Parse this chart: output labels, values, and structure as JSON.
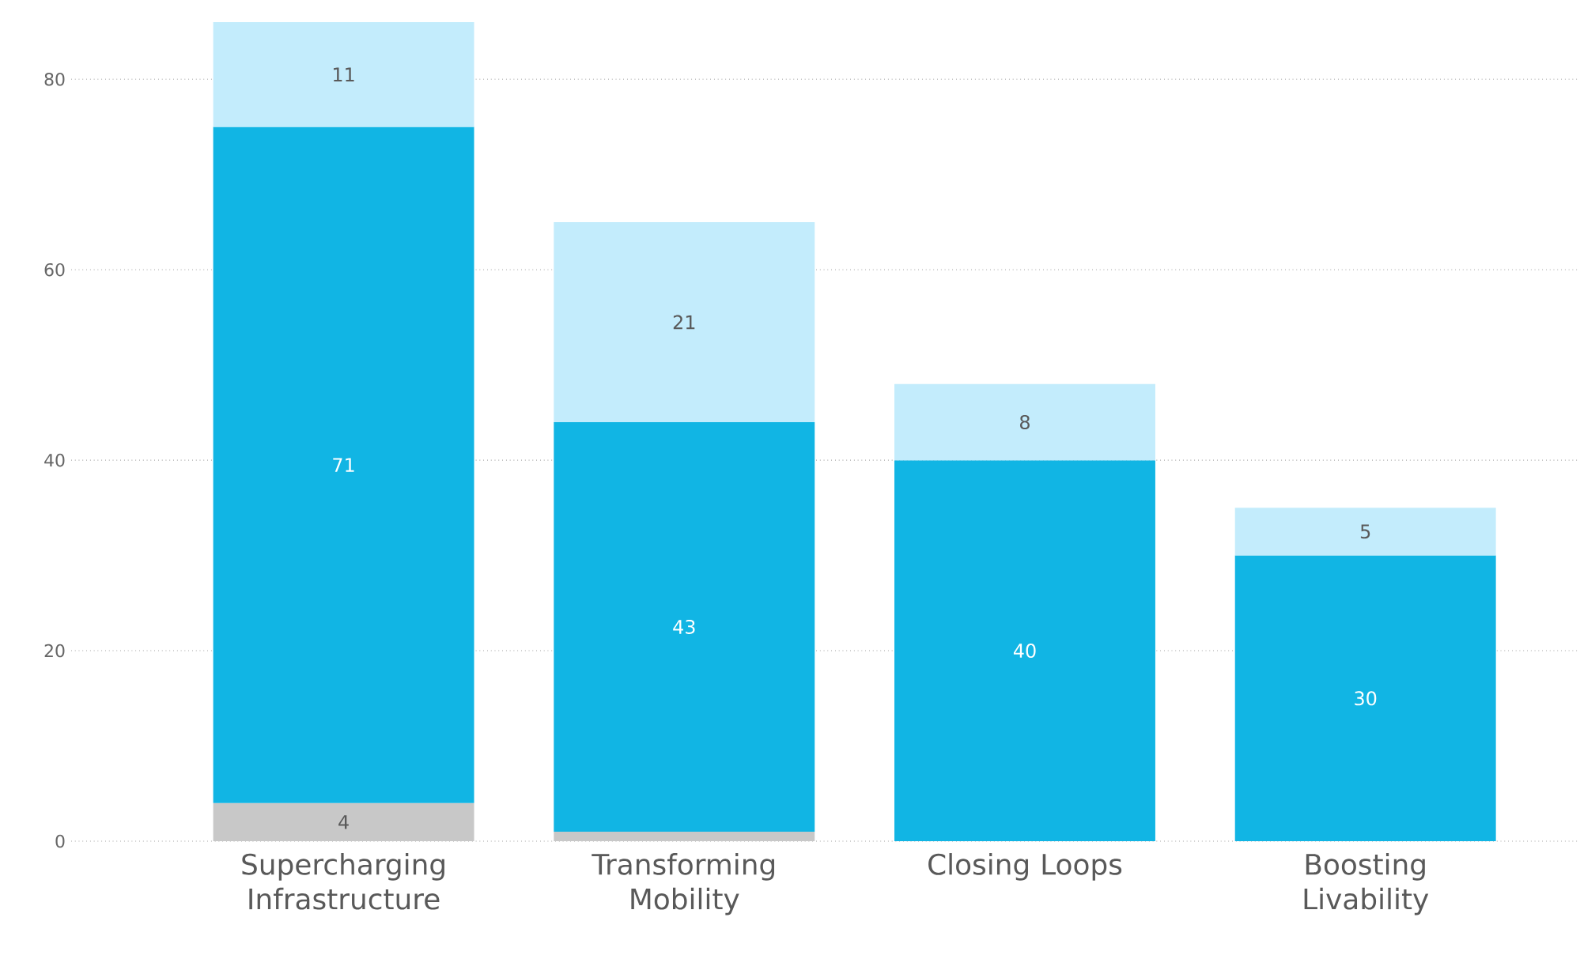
{
  "chart_data": {
    "type": "bar",
    "stacked": true,
    "categories": [
      "Supercharging Infrastructure",
      "Transforming Mobility",
      "Closing Loops",
      "Boosting Livability"
    ],
    "series": [
      {
        "color": "#c8c8c8",
        "values": [
          4,
          1,
          null,
          null
        ],
        "value_labels": [
          "4",
          null,
          null,
          null
        ]
      },
      {
        "color": "#11b5e4",
        "values": [
          71,
          43,
          40,
          30
        ],
        "value_labels": [
          "71",
          "43",
          "40",
          "30"
        ]
      },
      {
        "color": "#c3ecfc",
        "values": [
          11,
          21,
          8,
          5
        ],
        "value_labels": [
          "11",
          "21",
          "8",
          "5"
        ]
      }
    ],
    "ylim": [
      0,
      86
    ],
    "yticks": [
      0,
      20,
      40,
      60,
      80
    ],
    "grid": "y"
  }
}
